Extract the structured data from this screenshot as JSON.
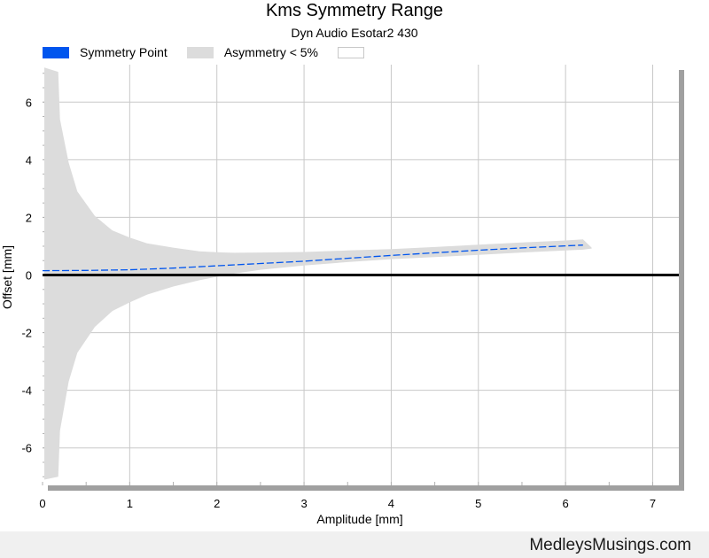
{
  "chart_data": {
    "type": "area",
    "title": "Kms Symmetry Range",
    "subtitle": "Dyn Audio Esotar2 430",
    "xlabel": "Amplitude [mm]",
    "ylabel": "Offset [mm]",
    "xlim": [
      0,
      7.3
    ],
    "ylim": [
      -7.3,
      7.3
    ],
    "x_ticks": [
      "0",
      "1",
      "2",
      "3",
      "4",
      "5",
      "6",
      "7"
    ],
    "y_ticks": [
      "6",
      "4",
      "2",
      "0",
      "-2",
      "-4",
      "-6"
    ],
    "grid": true,
    "legend_position": "top-left",
    "legend": [
      {
        "label": "Symmetry Point",
        "color": "#0055ee"
      },
      {
        "label": "Asymmetry < 5%",
        "color": "#dcdcdc"
      },
      {
        "label": "",
        "color": "#ffffff"
      }
    ],
    "series": [
      {
        "name": "Symmetry Point",
        "style": "dashed-line",
        "color": "#0055ee",
        "x": [
          0,
          0.5,
          1,
          1.5,
          2,
          2.5,
          3,
          3.5,
          4,
          4.5,
          5,
          5.5,
          6,
          6.2
        ],
        "y": [
          0.15,
          0.16,
          0.18,
          0.24,
          0.32,
          0.4,
          0.48,
          0.58,
          0.68,
          0.77,
          0.86,
          0.94,
          1.01,
          1.04
        ]
      },
      {
        "name": "Asymmetry < 5%",
        "style": "filled-band",
        "color": "#dcdcdc",
        "x": [
          0.02,
          0.18,
          0.2,
          0.3,
          0.4,
          0.6,
          0.8,
          1.0,
          1.2,
          1.5,
          1.8,
          2.0,
          2.2,
          2.5,
          3.0,
          3.5,
          4.0,
          4.5,
          5.0,
          5.5,
          6.0,
          6.2,
          6.3
        ],
        "upper": [
          7.2,
          7.05,
          5.4,
          3.9,
          2.9,
          2.05,
          1.55,
          1.3,
          1.1,
          0.95,
          0.82,
          0.79,
          0.77,
          0.78,
          0.8,
          0.85,
          0.9,
          0.97,
          1.05,
          1.13,
          1.2,
          1.24,
          0.95
        ],
        "lower": [
          -7.1,
          -7.0,
          -5.4,
          -3.7,
          -2.7,
          -1.8,
          -1.25,
          -0.95,
          -0.68,
          -0.4,
          -0.18,
          -0.06,
          0.05,
          0.18,
          0.33,
          0.45,
          0.55,
          0.62,
          0.7,
          0.78,
          0.85,
          0.88,
          0.92
        ]
      },
      {
        "name": "Zero",
        "style": "thick-line",
        "color": "#000000",
        "x": [
          0,
          7.3
        ],
        "y": [
          0,
          0
        ]
      }
    ]
  },
  "footer": {
    "text": "MedleysMusings.com",
    "background": "#f0f0f0"
  }
}
